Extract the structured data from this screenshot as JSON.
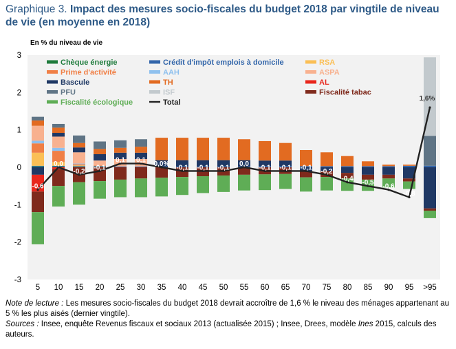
{
  "title": {
    "prefix": "Graphique 3.",
    "main": "Impact des mesures socio-fiscales du budget 2018 par vingtile de niveau de vie (en moyenne en 2018)"
  },
  "ylabel": "En % du niveau de vie",
  "footer": {
    "note_label": "Note de lecture :",
    "note_text": "Les mesures socio-fiscales du budget 2018 devrait accroître de 1,6 % le niveau des ménages appartenant au 5 % les plus aisés (dernier vingtile).",
    "sources_label": "Sources :",
    "sources_text_1": "Insee, enquête Revenus fiscaux et sociaux 2013 (actualisée 2015) ; Insee, Drees, modèle",
    "sources_ines": "Ines",
    "sources_text_2": "2015, calculs des auteurs."
  },
  "chart_data": {
    "type": "bar",
    "stacked": true,
    "background": "#f2f2f2",
    "grid": false,
    "ylim": [
      -3,
      3
    ],
    "yticks": [
      "3",
      "2",
      "1",
      "0",
      "-1",
      "-2",
      "-3"
    ],
    "categories": [
      "5",
      "10",
      "15",
      "20",
      "25",
      "30",
      "35",
      "40",
      "45",
      "50",
      "55",
      "60",
      "65",
      "70",
      "75",
      "80",
      "85",
      "90",
      "95",
      ">95"
    ],
    "series": [
      {
        "name": "Chèque énergie",
        "color": "#1e7b3c",
        "values": [
          0.02,
          0.02,
          0.01,
          0.01,
          0,
          0,
          0,
          0,
          0,
          0,
          0,
          0,
          0,
          0,
          0,
          0,
          0,
          0,
          0,
          0
        ]
      },
      {
        "name": "Crédit d'impôt emplois à domicile",
        "color": "#3366aa",
        "values": [
          0.02,
          0.02,
          0.02,
          0.02,
          0.02,
          0.02,
          0.02,
          0.02,
          0.02,
          0.02,
          0.02,
          0.03,
          0.03,
          0.03,
          0.03,
          0.03,
          0.03,
          0.03,
          0.04,
          0.04
        ]
      },
      {
        "name": "RSA",
        "color": "#fbbf55",
        "values": [
          0.35,
          0.1,
          0.02,
          0,
          0,
          0,
          0,
          0,
          0,
          0,
          0,
          0,
          0,
          0,
          0,
          0,
          0,
          0,
          0,
          0
        ]
      },
      {
        "name": "Prime d'activité",
        "color": "#f07f45",
        "values": [
          0.25,
          0.3,
          0.03,
          0.02,
          0,
          0,
          0,
          0,
          0,
          0,
          0,
          0,
          0,
          0,
          0,
          0,
          0,
          0,
          0,
          0
        ]
      },
      {
        "name": "AAH",
        "color": "#8ec0ee",
        "values": [
          0.07,
          0.08,
          0.02,
          0,
          0,
          0,
          0,
          0,
          0,
          0,
          0,
          0,
          0,
          0,
          0,
          0,
          0,
          0,
          0,
          0
        ]
      },
      {
        "name": "ASPA",
        "color": "#f8b18f",
        "values": [
          0.4,
          0.3,
          0.3,
          0.13,
          0.2,
          0.2,
          0,
          0,
          0,
          0,
          0,
          0,
          0,
          0,
          0,
          0,
          0,
          0,
          0,
          0
        ]
      },
      {
        "name": "Bascule",
        "color": "#1f3864",
        "values": [
          -0.2,
          0.1,
          0.13,
          0.17,
          0.17,
          0.17,
          0.17,
          0.17,
          0.17,
          0.17,
          0.17,
          0.15,
          0.15,
          -0.1,
          -0.1,
          -0.15,
          -0.2,
          -0.2,
          -0.3,
          -1.1
        ]
      },
      {
        "name": "TH",
        "color": "#e26b21",
        "values": [
          0.14,
          0.14,
          0.12,
          0.14,
          0.13,
          0.16,
          0.6,
          0.6,
          0.6,
          0.6,
          0.56,
          0.52,
          0.47,
          0.43,
          0.37,
          0.27,
          0.13,
          0.04,
          0.03,
          0
        ]
      },
      {
        "name": "AL",
        "color": "#e8261c",
        "values": [
          -0.45,
          -0.05,
          0,
          0,
          0,
          0,
          0,
          0,
          0,
          0,
          0,
          0,
          0,
          0,
          0,
          0,
          0,
          0,
          0,
          0
        ]
      },
      {
        "name": "PFU",
        "color": "#5f7485",
        "values": [
          0.1,
          0.1,
          0.2,
          0.2,
          0.2,
          0.2,
          0,
          0,
          0,
          0,
          0,
          0,
          0,
          0,
          0,
          0,
          0,
          0,
          0,
          0.8
        ]
      },
      {
        "name": "ISF",
        "color": "#c2c9cd",
        "values": [
          0,
          0,
          0,
          0,
          0,
          0,
          0,
          0,
          0,
          0,
          0,
          0,
          0,
          0,
          0,
          0,
          0,
          0,
          0,
          2.1
        ]
      },
      {
        "name": "Fiscalité tabac",
        "color": "#7f2a1c",
        "values": [
          -0.55,
          -0.45,
          -0.4,
          -0.37,
          -0.33,
          -0.3,
          -0.28,
          -0.26,
          -0.24,
          -0.22,
          -0.2,
          -0.19,
          -0.18,
          -0.17,
          -0.16,
          -0.15,
          -0.13,
          -0.1,
          -0.08,
          -0.06
        ]
      },
      {
        "name": "Fiscalité écologique",
        "color": "#5fad56",
        "values": [
          -0.86,
          -0.55,
          -0.6,
          -0.47,
          -0.47,
          -0.5,
          -0.5,
          -0.48,
          -0.45,
          -0.44,
          -0.42,
          -0.42,
          -0.4,
          -0.38,
          -0.36,
          -0.33,
          -0.3,
          -0.24,
          -0.2,
          -0.2
        ]
      }
    ],
    "total": {
      "name": "Total",
      "color": "#222222",
      "values": [
        -0.6,
        0.0,
        -0.2,
        -0.1,
        0.1,
        0.1,
        0.0,
        -0.1,
        -0.1,
        -0.1,
        0.0,
        -0.1,
        -0.1,
        -0.1,
        -0.2,
        -0.4,
        -0.5,
        -0.6,
        -0.8,
        1.6
      ],
      "labels": [
        "-0,6",
        "0,0",
        "-0,2",
        "-0,1",
        "0,1",
        "0,1",
        "0,0%",
        "-0,1",
        "-0,1",
        "-0,1",
        "0,0",
        "-0,1",
        "-0,1",
        "-0,1",
        "-0,2",
        "-0,4",
        "-0,5",
        "-0,6",
        "-0,8",
        "1,6%"
      ]
    },
    "legend_placement": "top-left"
  }
}
